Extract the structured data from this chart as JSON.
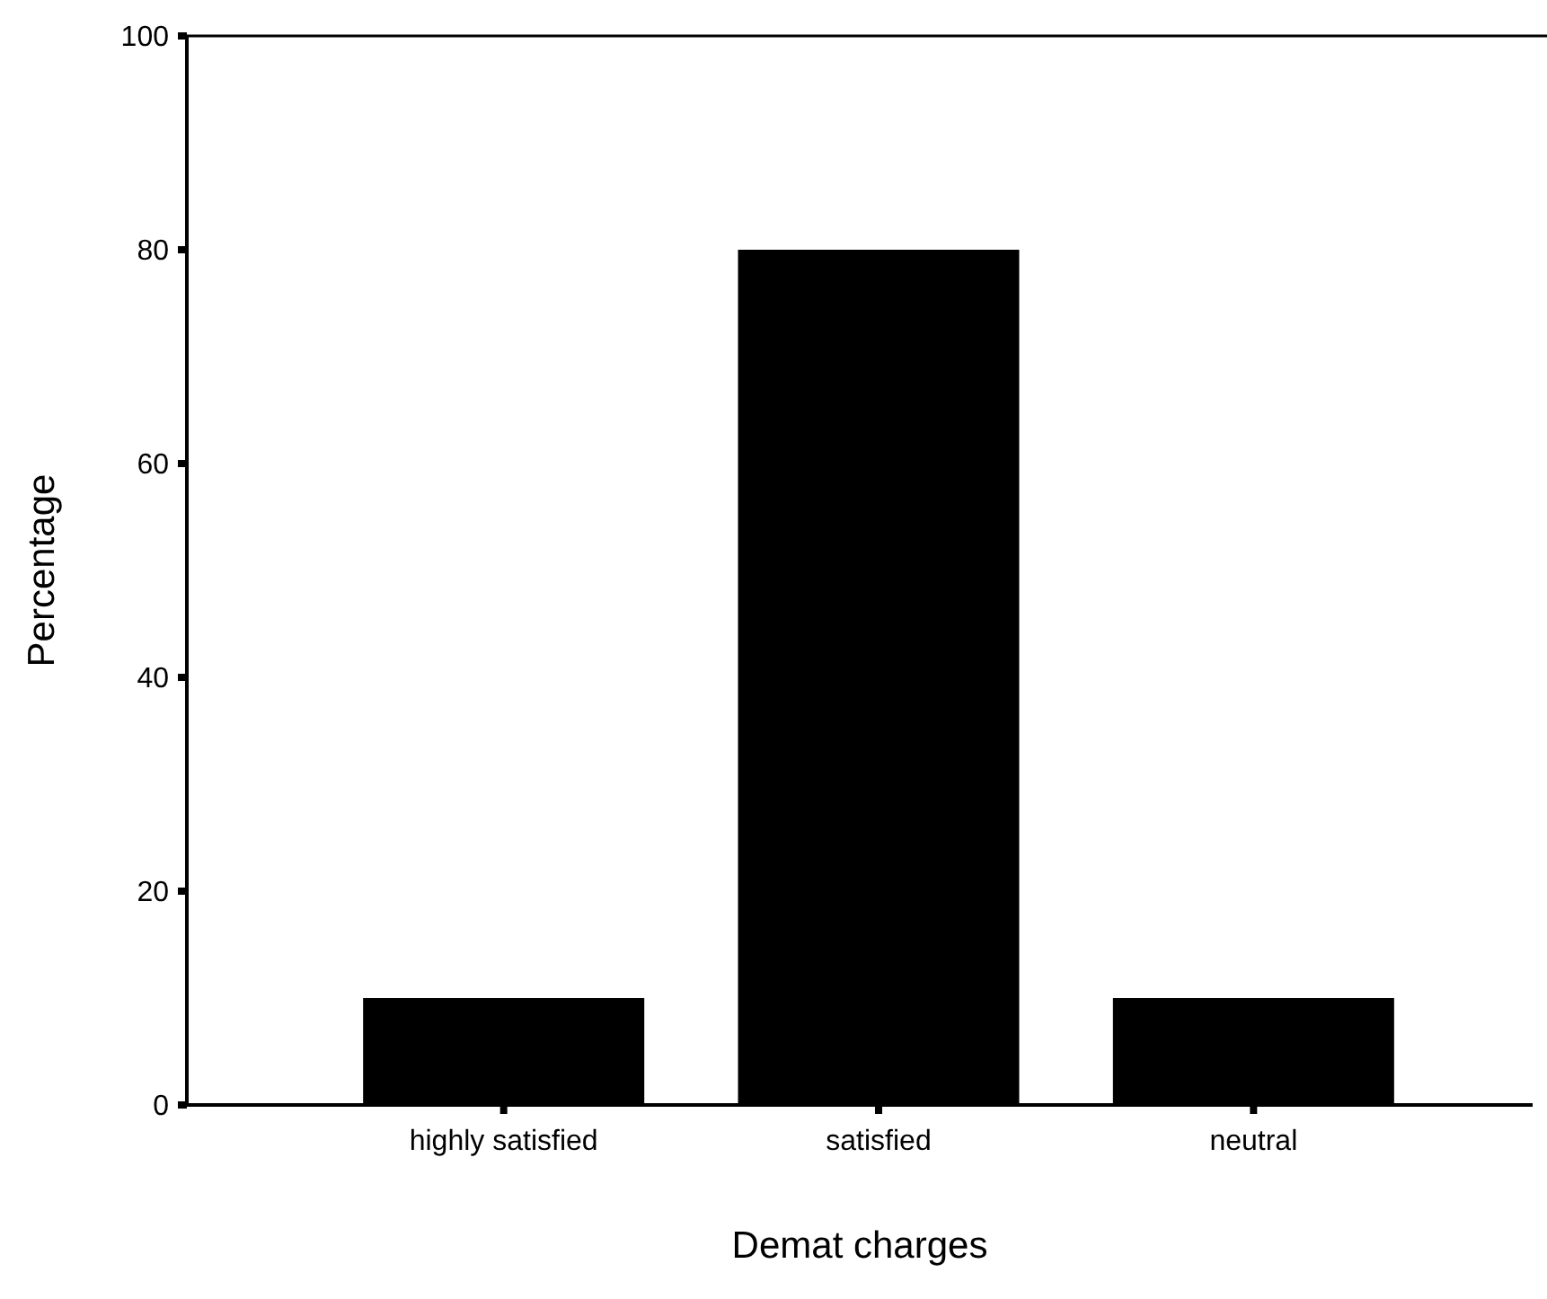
{
  "chart_data": {
    "type": "bar",
    "xlabel": "Demat charges",
    "ylabel": "Percentage",
    "categories": [
      "highly satisfied",
      "satisfied",
      "neutral"
    ],
    "values": [
      10,
      80,
      10
    ],
    "color": "#000000",
    "ylim": [
      0,
      100
    ],
    "yticks": [
      0,
      20,
      40,
      60,
      80,
      100
    ],
    "grid": false
  }
}
